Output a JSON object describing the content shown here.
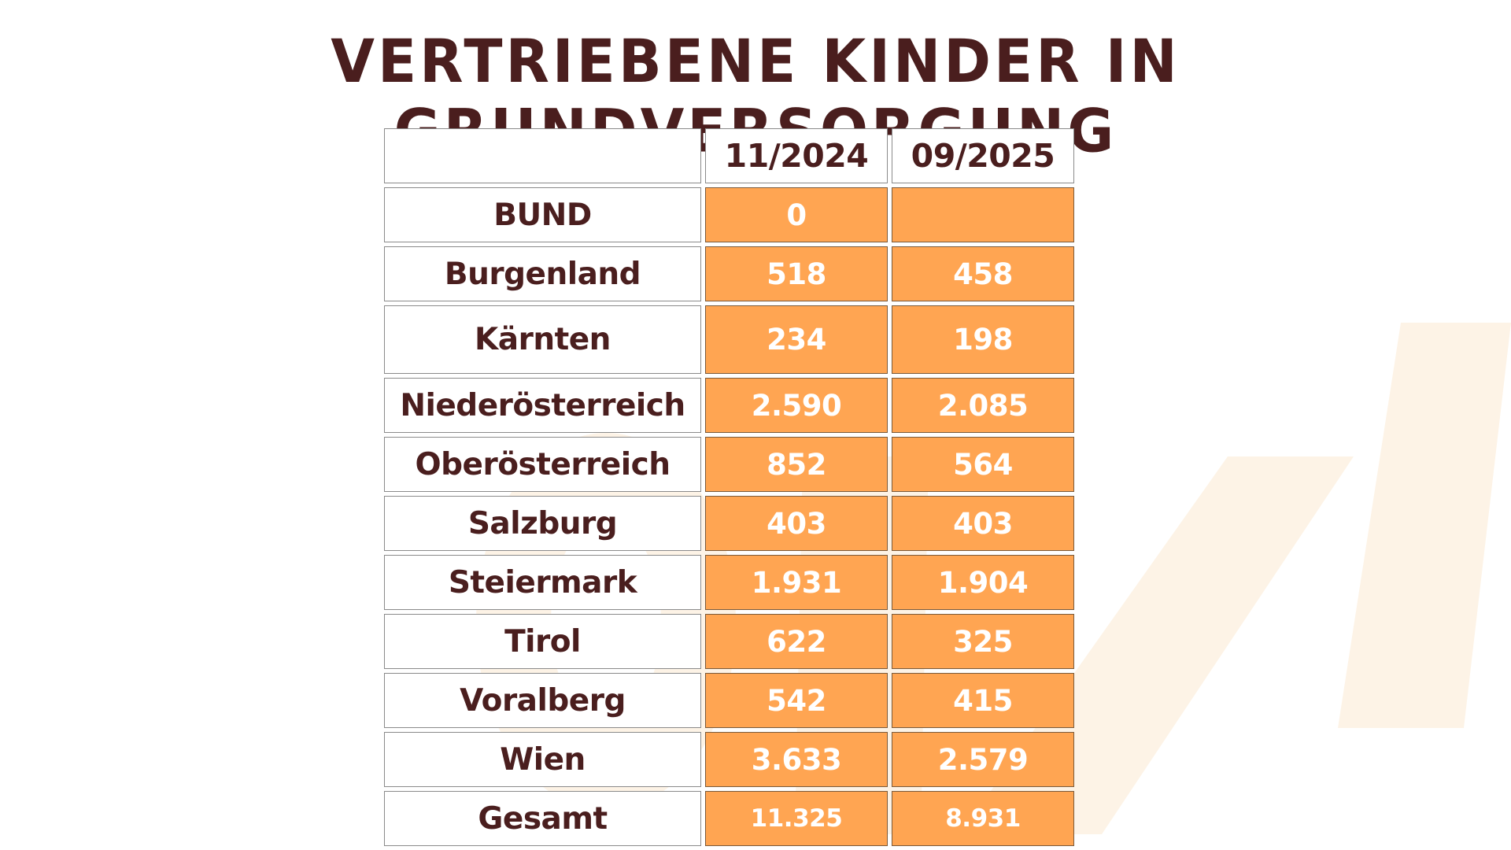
{
  "title": "VERTRIEBENE KINDER IN GRUNDVERSORGUNG",
  "colors": {
    "title": "#4a1e1e",
    "value_fill": "#ffa552",
    "value_text": "#ffffff",
    "label_text": "#4a1e1e",
    "watermark": "#fdf3e6"
  },
  "chart_data": {
    "type": "table",
    "title": "VERTRIEBENE KINDER IN GRUNDVERSORGUNG",
    "columns": [
      "",
      "11/2024",
      "09/2025"
    ],
    "rows": [
      {
        "label": "BUND",
        "v1": "0",
        "v2": ""
      },
      {
        "label": "Burgenland",
        "v1": "518",
        "v2": "458"
      },
      {
        "label": "Kärnten",
        "v1": "234",
        "v2": "198"
      },
      {
        "label": "Niederösterreich",
        "v1": "2.590",
        "v2": "2.085"
      },
      {
        "label": "Oberösterreich",
        "v1": "852",
        "v2": "564"
      },
      {
        "label": "Salzburg",
        "v1": "403",
        "v2": "403"
      },
      {
        "label": "Steiermark",
        "v1": "1.931",
        "v2": "1.904"
      },
      {
        "label": "Tirol",
        "v1": "622",
        "v2": "325"
      },
      {
        "label": "Voralberg",
        "v1": "542",
        "v2": "415"
      },
      {
        "label": "Wien",
        "v1": "3.633",
        "v2": "2.579"
      },
      {
        "label": "Gesamt",
        "v1": "11.325",
        "v2": "8.931"
      }
    ]
  }
}
